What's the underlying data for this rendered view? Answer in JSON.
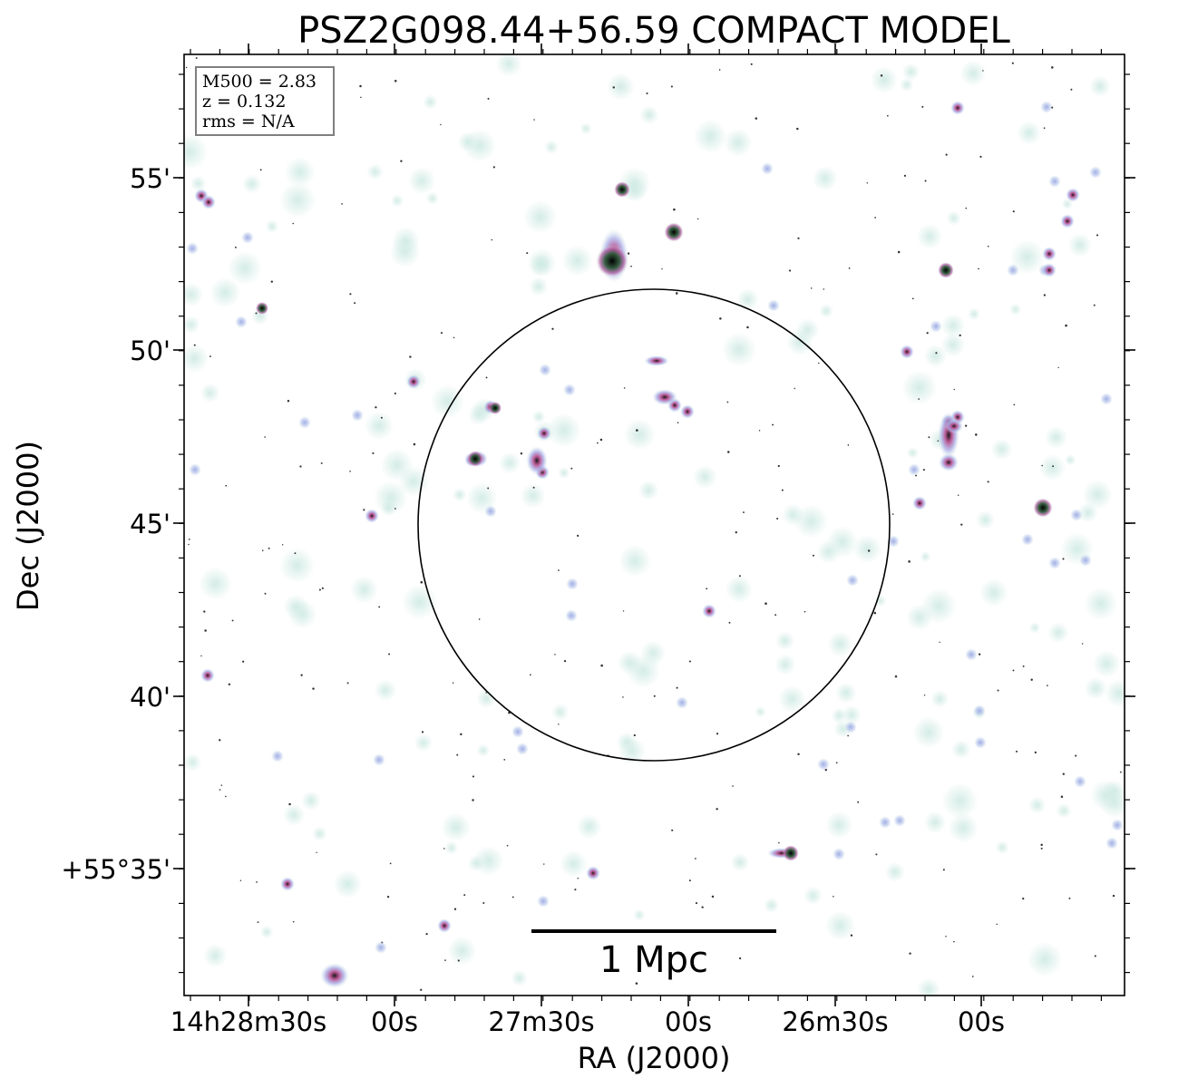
{
  "figure": {
    "title": "PSZ2G098.44+56.59 COMPACT MODEL",
    "info_box": {
      "lines": [
        "M500 = 2.83",
        "z = 0.132",
        "rms = N/A"
      ]
    },
    "scale_bar_label": "1 Mpc",
    "x_axis_label": "RA (J2000)",
    "y_axis_label": "Dec (J2000)",
    "x_tick_labels": [
      "14h28m30s",
      "00s",
      "27m30s",
      "00s",
      "26m30s",
      "00s"
    ],
    "y_tick_labels": [
      "55'",
      "50'",
      "45'",
      "40'",
      "+55°35'"
    ],
    "colors": {
      "frame": "#000000",
      "faint_source": "#cfeae3",
      "medium_source": "#a9b8e6",
      "bright_source": "#c46aa8",
      "core_source": "#000000",
      "info_box_border": "#7f7f7f"
    }
  }
}
